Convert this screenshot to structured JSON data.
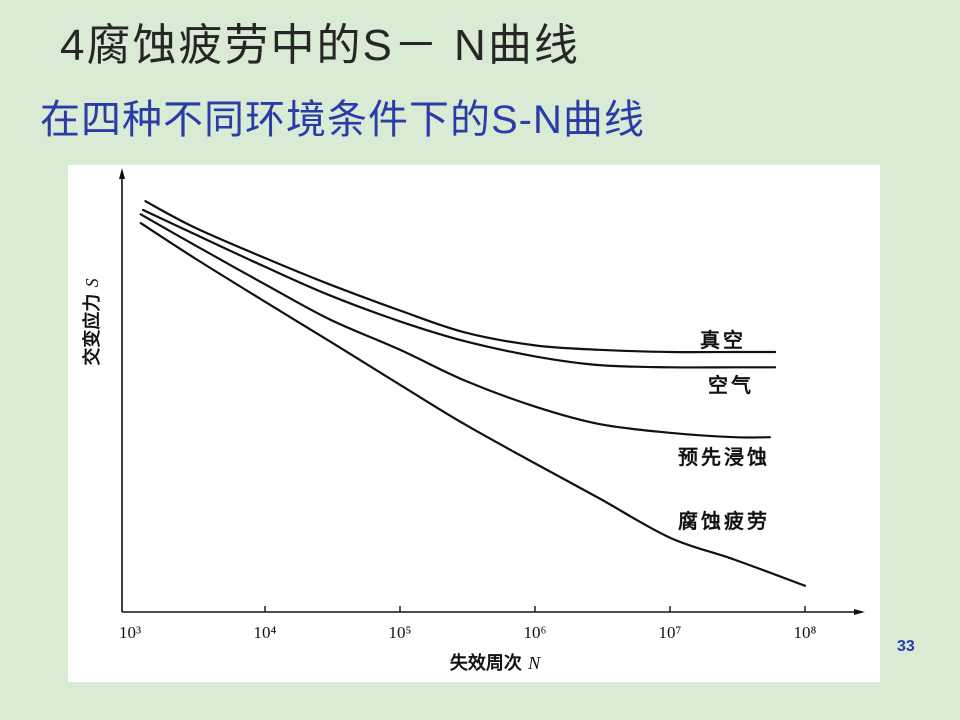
{
  "slide": {
    "title": "4腐蚀疲劳中的S－ N曲线",
    "subtitle": "在四种不同环境条件下的S-N曲线",
    "page_number": "33"
  },
  "colors": {
    "background": "#d9ebd4",
    "title": "#262626",
    "subtitle": "#2a3ca8",
    "page_number": "#2a3ca8",
    "chart_panel": "#ffffff",
    "ink": "#111111"
  },
  "chart_data": {
    "type": "line",
    "title": "",
    "xlabel": "失效周次 N",
    "ylabel": "交变应力 S",
    "xscale": "log",
    "xlim": [
      1000,
      100000000
    ],
    "ylim": [
      0,
      1
    ],
    "grid": false,
    "legend": "none",
    "x_ticks": [
      {
        "value": 1000,
        "label": "10³"
      },
      {
        "value": 10000,
        "label": "10⁴"
      },
      {
        "value": 100000,
        "label": "10⁵"
      },
      {
        "value": 1000000,
        "label": "10⁶"
      },
      {
        "value": 10000000,
        "label": "10⁷"
      },
      {
        "value": 100000000,
        "label": "10⁸"
      }
    ],
    "series": [
      {
        "name": "真空",
        "x": [
          1300,
          3000,
          10000,
          30000,
          100000,
          300000,
          1000000,
          3000000,
          10000000,
          30000000,
          60000000
        ],
        "y": [
          0.94,
          0.88,
          0.81,
          0.75,
          0.69,
          0.64,
          0.61,
          0.6,
          0.595,
          0.595,
          0.595
        ]
      },
      {
        "name": "空气",
        "x": [
          1250,
          3000,
          10000,
          30000,
          100000,
          300000,
          1000000,
          3000000,
          10000000,
          30000000,
          60000000
        ],
        "y": [
          0.92,
          0.865,
          0.79,
          0.725,
          0.665,
          0.62,
          0.585,
          0.565,
          0.56,
          0.56,
          0.56
        ]
      },
      {
        "name": "预先浸蚀",
        "x": [
          1200,
          3000,
          10000,
          30000,
          100000,
          300000,
          1000000,
          3000000,
          10000000,
          30000000,
          55000000
        ],
        "y": [
          0.91,
          0.84,
          0.75,
          0.67,
          0.6,
          0.53,
          0.47,
          0.43,
          0.41,
          0.4,
          0.4
        ]
      },
      {
        "name": "腐蚀疲劳",
        "x": [
          1200,
          3000,
          10000,
          30000,
          100000,
          300000,
          1000000,
          3000000,
          10000000,
          30000000,
          100000000
        ],
        "y": [
          0.89,
          0.81,
          0.71,
          0.62,
          0.52,
          0.43,
          0.34,
          0.26,
          0.17,
          0.12,
          0.06
        ]
      }
    ]
  }
}
